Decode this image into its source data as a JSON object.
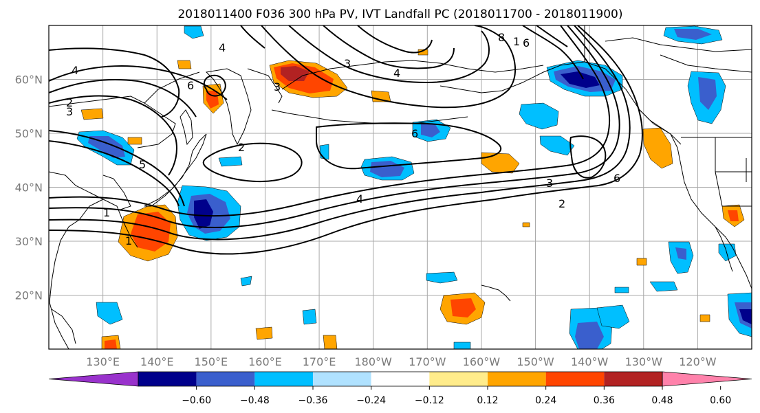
{
  "title": "2018011400 F036 300 hPa PV, IVT Landfall PC (2018011700 - 2018011900)",
  "map": {
    "lat_labels": [
      "60°N",
      "50°N",
      "40°N",
      "30°N",
      "20°N"
    ],
    "lon_labels": [
      "130°E",
      "140°E",
      "150°E",
      "160°E",
      "170°E",
      "180°W",
      "170°W",
      "160°W",
      "150°W",
      "140°W",
      "130°W",
      "120°W"
    ],
    "lon_range": [
      120,
      250
    ],
    "lat_range": [
      10,
      70
    ],
    "grid": true
  },
  "contour_labels": [
    "4",
    "4",
    "2",
    "3",
    "1",
    "1",
    "2",
    "5",
    "6",
    "3",
    "3",
    "4",
    "8",
    "1",
    "6",
    "6",
    "4",
    "3",
    "2",
    "6"
  ],
  "colorbar": {
    "ticks": [
      "−0.60",
      "−0.48",
      "−0.36",
      "−0.24",
      "−0.12",
      "0.12",
      "0.24",
      "0.36",
      "0.48",
      "0.60"
    ],
    "colors": [
      "#9932cc",
      "#00008b",
      "#3a5fcd",
      "#00bfff",
      "#b0e2ff",
      "#ffffff",
      "#ffec8b",
      "#ffa500",
      "#ff4500",
      "#b22222",
      "#ff82ab"
    ],
    "extend": "both"
  }
}
